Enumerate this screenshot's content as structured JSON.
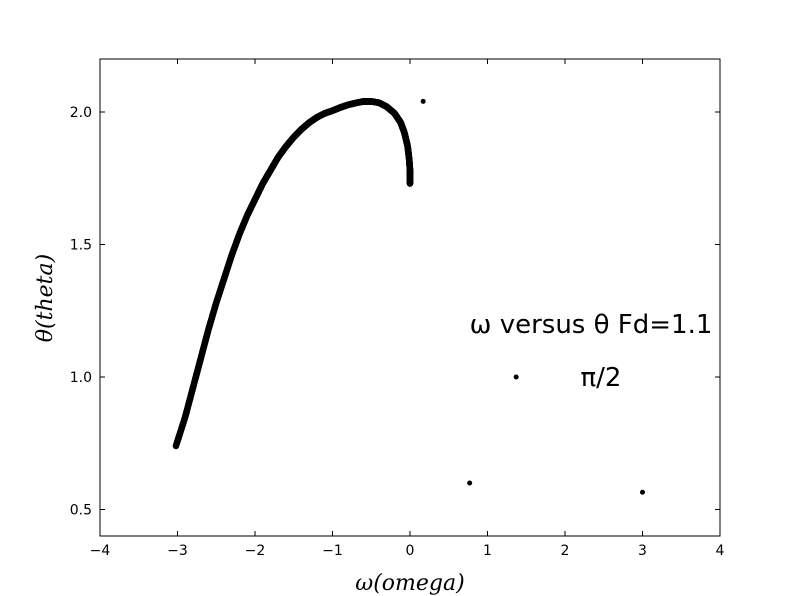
{
  "chart_data": {
    "type": "scatter",
    "title": "",
    "xlabel": "ω(omega)",
    "ylabel": "θ(theta)",
    "xlim": [
      -4,
      4
    ],
    "ylim": [
      0.4,
      2.2
    ],
    "xticks": [
      -4,
      -3,
      -2,
      -1,
      0,
      1,
      2,
      3,
      4
    ],
    "yticks": [
      0.5,
      1.0,
      1.5,
      2.0
    ],
    "xtick_labels": [
      "−4",
      "−3",
      "−2",
      "−1",
      "0",
      "1",
      "2",
      "3",
      "4"
    ],
    "ytick_labels": [
      "0.5",
      "1.0",
      "1.5",
      "2.0"
    ],
    "grid": false,
    "marker_color": "#000000",
    "curve_points": [
      [
        -3.02,
        0.74
      ],
      [
        -2.9,
        0.85
      ],
      [
        -2.8,
        0.96
      ],
      [
        -2.7,
        1.07
      ],
      [
        -2.6,
        1.18
      ],
      [
        -2.5,
        1.28
      ],
      [
        -2.4,
        1.37
      ],
      [
        -2.3,
        1.46
      ],
      [
        -2.2,
        1.54
      ],
      [
        -2.1,
        1.61
      ],
      [
        -2.0,
        1.67
      ],
      [
        -1.9,
        1.73
      ],
      [
        -1.8,
        1.78
      ],
      [
        -1.7,
        1.83
      ],
      [
        -1.6,
        1.87
      ],
      [
        -1.5,
        1.905
      ],
      [
        -1.4,
        1.935
      ],
      [
        -1.3,
        1.96
      ],
      [
        -1.2,
        1.98
      ],
      [
        -1.1,
        1.995
      ],
      [
        -1.0,
        2.005
      ],
      [
        -0.9,
        2.017
      ],
      [
        -0.8,
        2.027
      ],
      [
        -0.7,
        2.034
      ],
      [
        -0.6,
        2.04
      ],
      [
        -0.5,
        2.04
      ],
      [
        -0.4,
        2.035
      ],
      [
        -0.3,
        2.02
      ],
      [
        -0.2,
        1.995
      ],
      [
        -0.12,
        1.96
      ],
      [
        -0.07,
        1.92
      ],
      [
        -0.03,
        1.87
      ],
      [
        -0.01,
        1.82
      ],
      [
        0.0,
        1.78
      ],
      [
        0.0,
        1.73
      ]
    ],
    "isolated_points": [
      {
        "x": 0.17,
        "y": 2.04
      },
      {
        "x": 1.37,
        "y": 1.0
      },
      {
        "x": 0.77,
        "y": 0.6
      },
      {
        "x": 3.0,
        "y": 0.565
      }
    ],
    "annotations": [
      {
        "text": "ω versus θ   Fd=1.1",
        "data_x": 0.77,
        "data_y": 1.2
      },
      {
        "text": "π/2",
        "data_x": 2.2,
        "data_y": 1.0
      }
    ]
  }
}
